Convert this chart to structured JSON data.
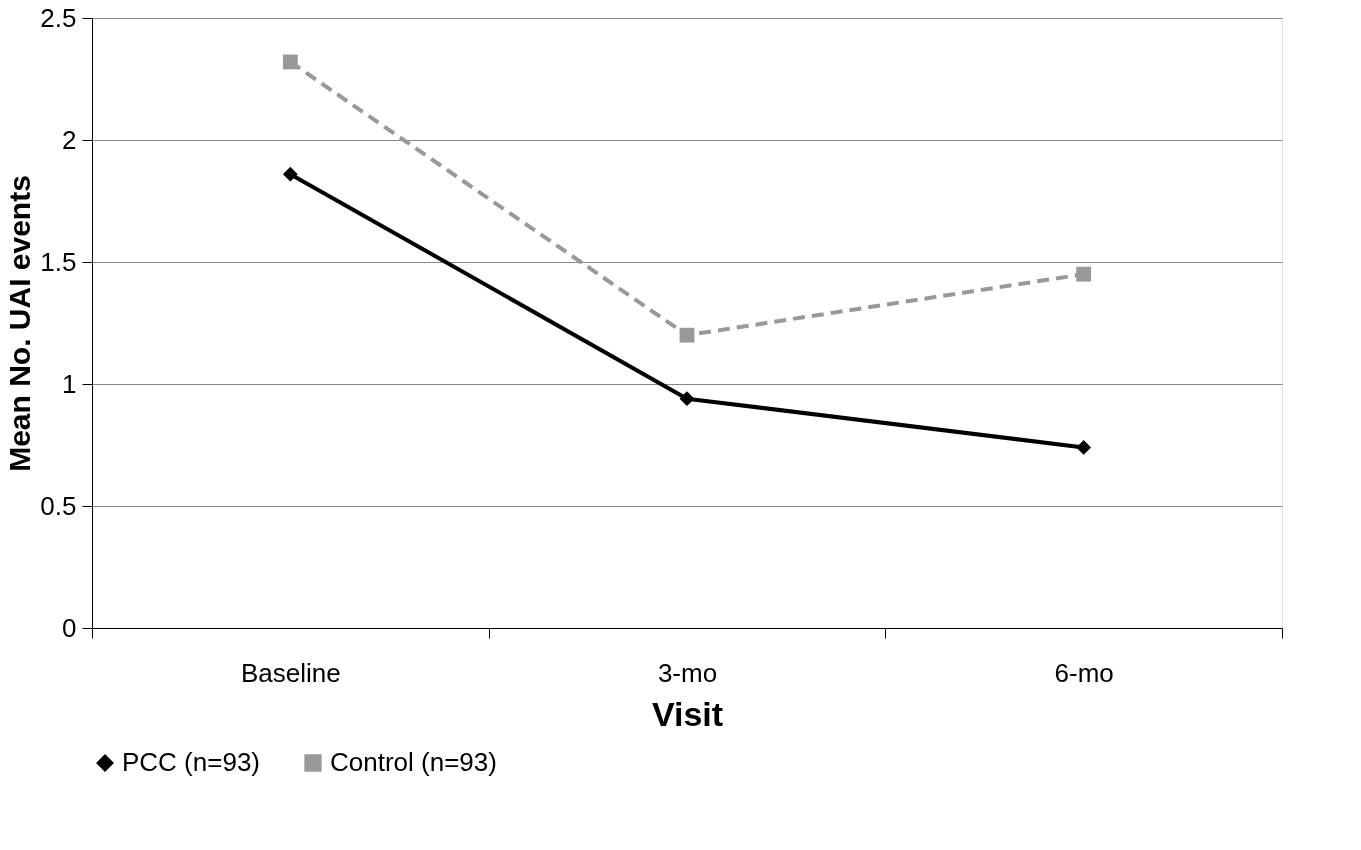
{
  "chart_data": {
    "type": "line",
    "xlabel": "Visit",
    "ylabel": "Mean No. UAI events",
    "categories": [
      "Baseline",
      "3-mo",
      "6-mo"
    ],
    "series": [
      {
        "name": "PCC (n=93)",
        "color": "#000000",
        "marker": "diamond",
        "line_style": "solid",
        "values": [
          1.86,
          0.94,
          0.74
        ]
      },
      {
        "name": "Control (n=93)",
        "color": "#999999",
        "marker": "square",
        "line_style": "dashed",
        "values": [
          2.32,
          1.2,
          1.45
        ]
      }
    ],
    "ylim": [
      0,
      2.5
    ],
    "yticks": [
      0,
      0.5,
      1,
      1.5,
      2,
      2.5
    ],
    "grid": "y",
    "legend": "bottom"
  }
}
